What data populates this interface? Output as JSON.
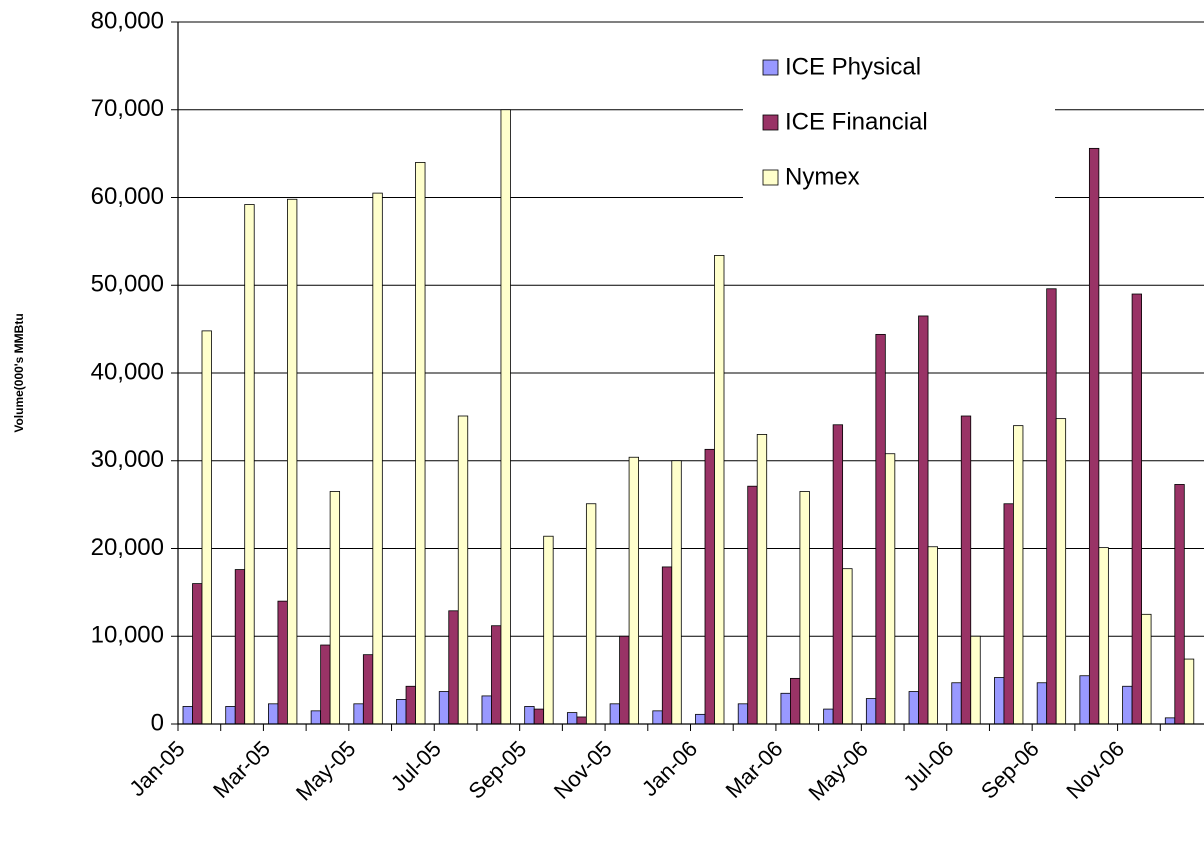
{
  "chart_data": {
    "type": "bar",
    "y_label": "Volume(000's MMBtu",
    "categories": [
      "Jan-05",
      null,
      "Mar-05",
      null,
      "May-05",
      null,
      "Jul-05",
      null,
      "Sep-05",
      null,
      "Nov-05",
      null,
      "Jan-06",
      null,
      "Mar-06",
      null,
      "May-06",
      null,
      "Jul-06",
      null,
      "Sep-06",
      null,
      "Nov-06",
      null
    ],
    "series": [
      {
        "name": "ICE Physical",
        "color": "#9999ff",
        "values": [
          2000,
          2000,
          2300,
          1500,
          2300,
          2800,
          3700,
          3200,
          2000,
          1300,
          2300,
          1500,
          1100,
          2300,
          3500,
          1700,
          2900,
          3700,
          4700,
          5300,
          4700,
          5500,
          4300,
          700
        ]
      },
      {
        "name": "ICE Financial",
        "color": "#993366",
        "values": [
          16000,
          17600,
          14000,
          9000,
          7900,
          4300,
          12900,
          11200,
          1700,
          800,
          10000,
          17900,
          31300,
          27100,
          5200,
          34100,
          44400,
          46500,
          35100,
          25100,
          49600,
          65600,
          49000,
          27300
        ]
      },
      {
        "name": "Nymex",
        "color": "#ffffcc",
        "values": [
          44800,
          59200,
          59800,
          26500,
          60500,
          64000,
          35100,
          70000,
          21400,
          25100,
          30400,
          30000,
          53400,
          33000,
          26500,
          17700,
          30800,
          20200,
          10000,
          34000,
          34800,
          20100,
          12500,
          7400
        ]
      }
    ],
    "ylim": [
      0,
      80000
    ],
    "yticks": [
      0,
      {
        "value": 10000,
        "label": "10,000"
      },
      {
        "value": 20000,
        "label": "20,000"
      },
      {
        "value": 30000,
        "label": "30,000"
      },
      {
        "value": 40000,
        "label": "40,000"
      },
      {
        "value": 50000,
        "label": "50,000"
      },
      {
        "value": 60000,
        "label": "60,000"
      },
      {
        "value": 70000,
        "label": "70,000"
      },
      {
        "value": 80000,
        "label": "80,000"
      }
    ],
    "grid": true,
    "legend": "upper right"
  }
}
